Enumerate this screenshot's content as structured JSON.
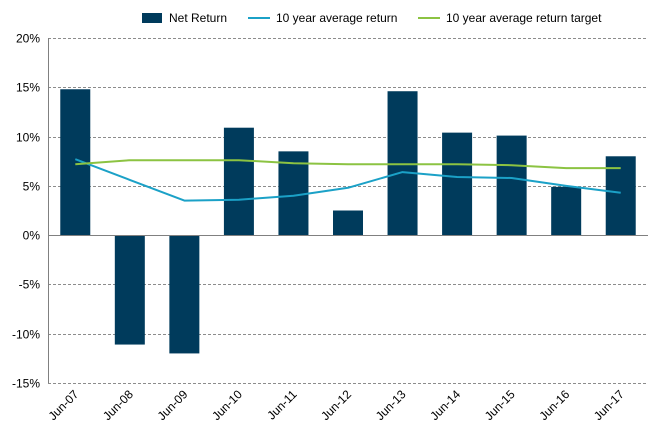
{
  "chart_data": {
    "type": "bar",
    "title": "",
    "xlabel": "",
    "ylabel": "",
    "categories": [
      "Jun-07",
      "Jun-08",
      "Jun-09",
      "Jun-10",
      "Jun-11",
      "Jun-12",
      "Jun-13",
      "Jun-14",
      "Jun-15",
      "Jun-16",
      "Jun-17"
    ],
    "ylim": [
      -15,
      20
    ],
    "yticks": [
      20,
      15,
      10,
      5,
      0,
      -5,
      -10,
      -15
    ],
    "ytick_labels": [
      "20%",
      "15%",
      "10%",
      "5%",
      "0%",
      "-5%",
      "-10%",
      "-15%"
    ],
    "grid": true,
    "legend_position": "top",
    "series": [
      {
        "name": "Net Return",
        "kind": "bar",
        "color": "#003b5c",
        "values": [
          14.8,
          -11.1,
          -12.0,
          10.9,
          8.5,
          2.5,
          14.6,
          10.4,
          10.1,
          4.9,
          8.0
        ]
      },
      {
        "name": "10 year average return",
        "kind": "line",
        "color": "#1ba1c7",
        "values": [
          7.7,
          5.6,
          3.5,
          3.6,
          4.0,
          4.8,
          6.4,
          5.9,
          5.8,
          5.0,
          4.3
        ]
      },
      {
        "name": "10 year average return target",
        "kind": "line",
        "color": "#8cc342",
        "values": [
          7.2,
          7.6,
          7.6,
          7.6,
          7.3,
          7.2,
          7.2,
          7.2,
          7.1,
          6.8,
          6.8
        ]
      }
    ]
  }
}
